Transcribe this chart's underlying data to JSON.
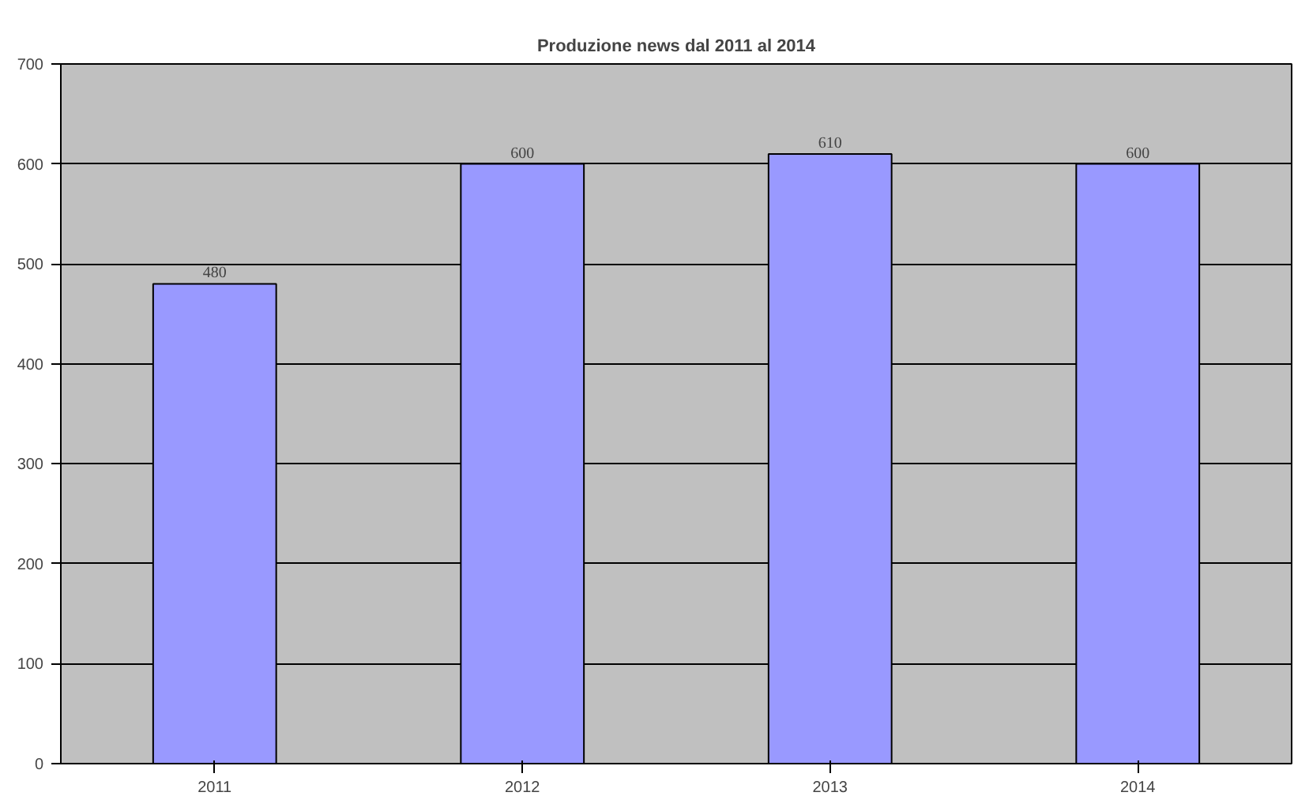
{
  "chart_data": {
    "type": "bar",
    "title": "Produzione news dal 2011 al 2014",
    "categories": [
      "2011",
      "2012",
      "2013",
      "2014"
    ],
    "values": [
      480,
      600,
      610,
      600
    ],
    "color": "#9999ff",
    "ylim": [
      0,
      700
    ],
    "yticks": [
      0,
      100,
      200,
      300,
      400,
      500,
      600,
      700
    ],
    "grid": "y",
    "data_labels": true
  }
}
